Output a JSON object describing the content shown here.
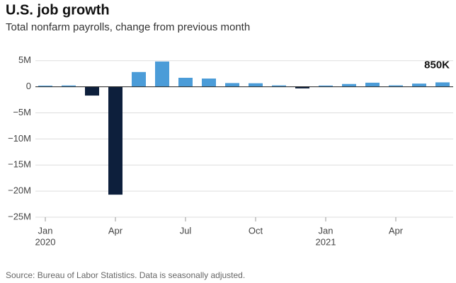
{
  "chart_data": {
    "type": "bar",
    "title": "U.S. job growth",
    "subtitle": "Total nonfarm payrolls, change from previous month",
    "source": "Source: Bureau of Labor Statistics. Data is seasonally adjusted.",
    "categories": [
      "Jan",
      null,
      null,
      "Apr",
      null,
      null,
      "Jul",
      null,
      null,
      "Oct",
      null,
      null,
      "Jan",
      null,
      null,
      "Apr",
      null,
      null
    ],
    "years": [
      "2020",
      null,
      null,
      null,
      null,
      null,
      null,
      null,
      null,
      null,
      null,
      null,
      "2021",
      null,
      null,
      null,
      null,
      null
    ],
    "values": [
      214000,
      251000,
      -1683000,
      -20679000,
      2833000,
      4846000,
      1726000,
      1583000,
      716000,
      680000,
      264000,
      -306000,
      233000,
      536000,
      785000,
      269000,
      614000,
      850000
    ],
    "value_labels": [
      null,
      null,
      null,
      null,
      null,
      null,
      null,
      null,
      null,
      null,
      null,
      null,
      null,
      null,
      null,
      null,
      null,
      "850K"
    ],
    "color": "#4b9cd8",
    "negative_color": "#0d1f3c",
    "ylim": [
      -25000000,
      8500000
    ],
    "yticks": [
      {
        "value": 5000000,
        "label": "5M"
      },
      0,
      {
        "value": -5000000,
        "label": "−5M"
      },
      {
        "value": -10000000,
        "label": "−10M"
      },
      {
        "value": -15000000,
        "label": "−15M"
      },
      {
        "value": -20000000,
        "label": "−20M"
      },
      {
        "value": -25000000,
        "label": "−25M"
      }
    ],
    "grid": true
  }
}
